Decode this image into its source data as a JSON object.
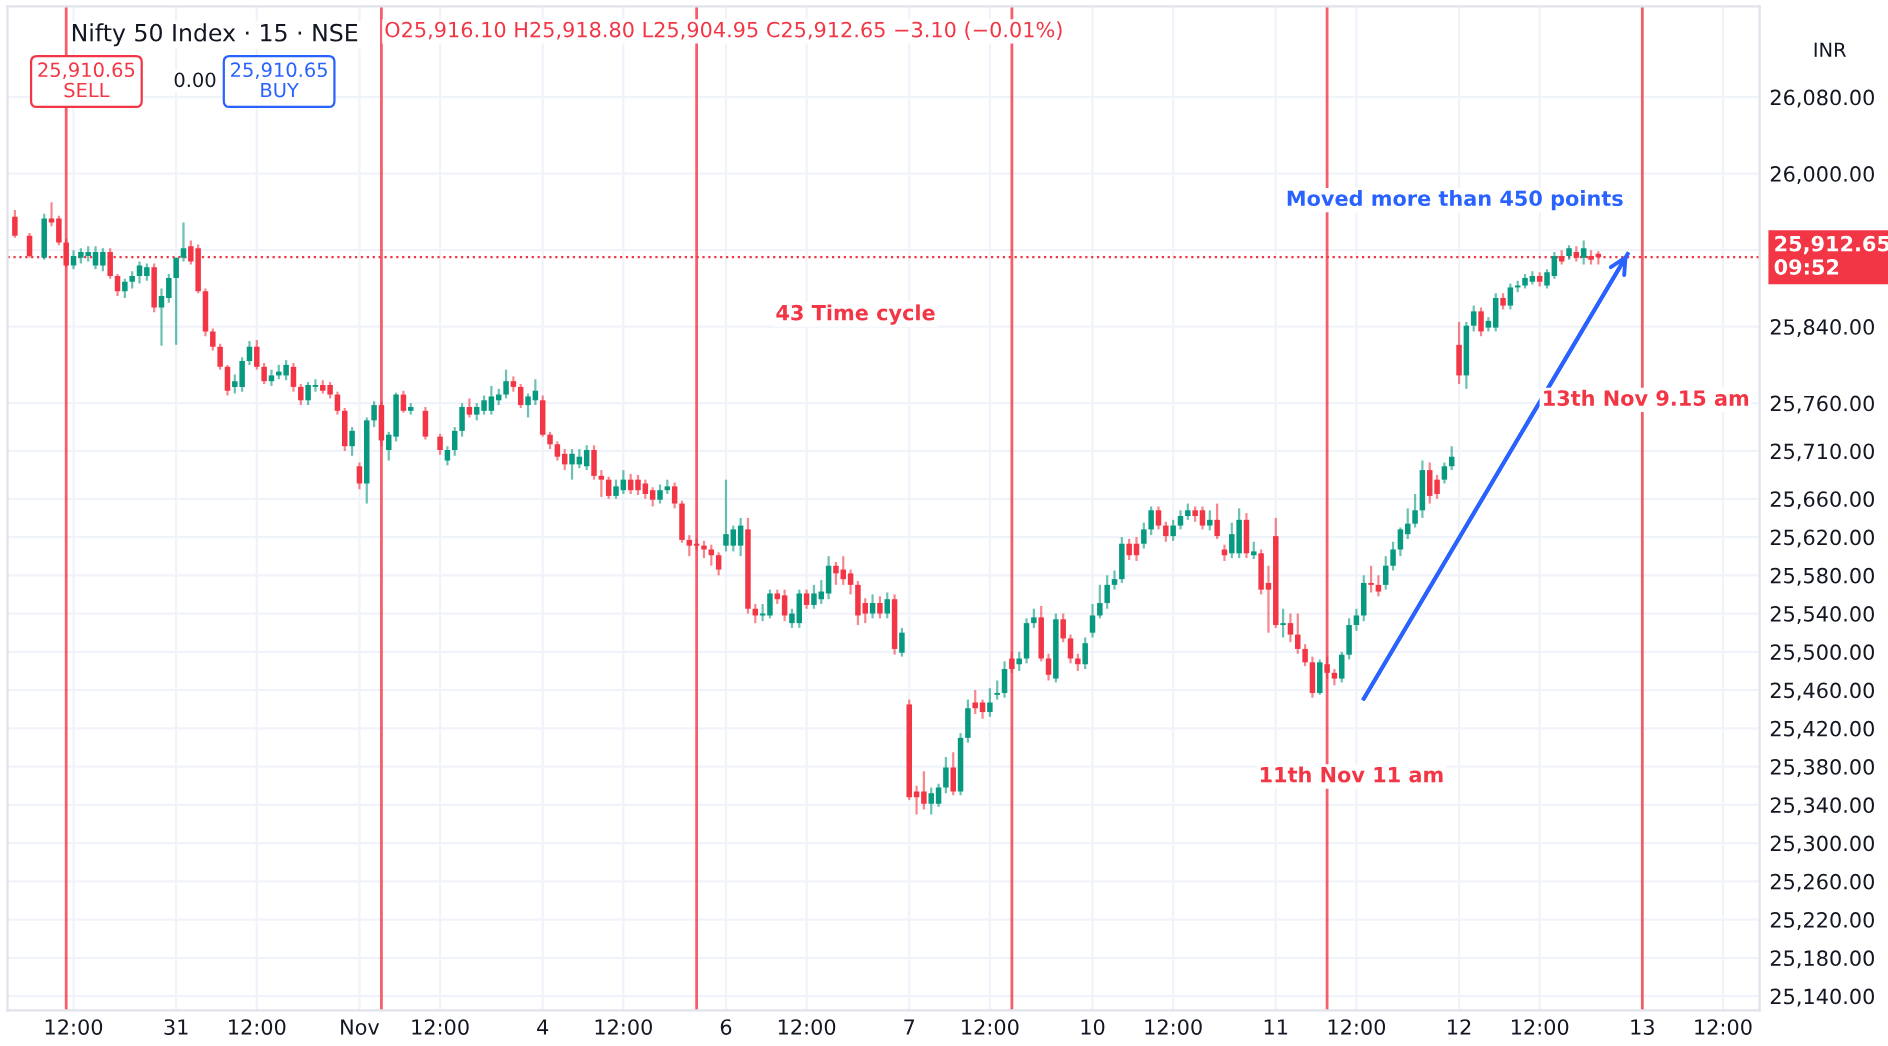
{
  "chart_data": {
    "type": "candlestick",
    "title": "Nifty 50 Index · 15 · NSE",
    "subtitle": "O25,916.10 H25,918.80 L25,904.95 C25,912.65 −3.10 (−0.01%)",
    "categories": [
      null,
      null,
      null,
      null,
      null,
      null,
      null,
      null,
      "12:00",
      null,
      null,
      null,
      null,
      null,
      null,
      null,
      null,
      null,
      null,
      null,
      null,
      null,
      "31",
      null,
      null,
      null,
      null,
      null,
      null,
      null,
      null,
      null,
      null,
      "12:00",
      null,
      null,
      null,
      null,
      null,
      null,
      null,
      null,
      null,
      null,
      null,
      null,
      null,
      "Nov",
      null,
      null,
      null,
      null,
      null,
      null,
      null,
      null,
      null,
      null,
      "12:00",
      null,
      null,
      null,
      null,
      null,
      null,
      null,
      null,
      null,
      null,
      null,
      null,
      null,
      "4",
      null,
      null,
      null,
      null,
      null,
      null,
      null,
      null,
      null,
      null,
      "12:00",
      null,
      null,
      null,
      null,
      null,
      null,
      null,
      null,
      null,
      null,
      null,
      null,
      null,
      "6",
      null,
      null,
      null,
      null,
      null,
      null,
      null,
      null,
      null,
      null,
      "12:00",
      null,
      null,
      null,
      null,
      null,
      null,
      null,
      null,
      null,
      null,
      null,
      null,
      null,
      "7",
      null,
      null,
      null,
      null,
      null,
      null,
      null,
      null,
      null,
      null,
      "12:00",
      null,
      null,
      null,
      null,
      null,
      null,
      null,
      null,
      null,
      null,
      null,
      null,
      null,
      "10",
      null,
      null,
      null,
      null,
      null,
      null,
      null,
      null,
      null,
      null,
      "12:00",
      null,
      null,
      null,
      null,
      null,
      null,
      null,
      null,
      null,
      null,
      null,
      null,
      null,
      "11",
      null,
      null,
      null,
      null,
      null,
      null,
      null,
      null,
      null,
      null,
      "12:00",
      null,
      null,
      null,
      null,
      null,
      null,
      null,
      null,
      null,
      null,
      null,
      null,
      null,
      "12",
      null,
      null,
      null,
      null,
      null,
      null,
      null,
      null,
      null,
      null,
      "12:00",
      null,
      null,
      null,
      null,
      null,
      null,
      null,
      null,
      null,
      null,
      null,
      null,
      null,
      "13",
      null,
      null,
      null,
      null,
      null,
      null,
      null,
      null,
      null,
      null,
      "12:00"
    ],
    "ohlc": [
      [
        25955,
        25962,
        25933,
        25935
      ],
      null,
      [
        25935,
        25938,
        25912,
        25914
      ],
      null,
      [
        25912,
        25958,
        25910,
        25953
      ],
      [
        25953,
        25970,
        25945,
        25949
      ],
      [
        25953,
        25956,
        25925,
        25928
      ],
      [
        25928,
        25932,
        25902,
        25904
      ],
      [
        25904,
        25920,
        25900,
        25914
      ],
      [
        25912,
        25922,
        25906,
        25918
      ],
      [
        25914,
        25924,
        25908,
        25918
      ],
      [
        25904,
        25924,
        25900,
        25918
      ],
      [
        25904,
        25922,
        25898,
        25918
      ],
      [
        25918,
        25922,
        25890,
        25893
      ],
      [
        25893,
        25895,
        25872,
        25877
      ],
      [
        25877,
        25890,
        25870,
        25887
      ],
      [
        25887,
        25898,
        25880,
        25893
      ],
      [
        25893,
        25908,
        25885,
        25904
      ],
      [
        25893,
        25906,
        25888,
        25902
      ],
      [
        25902,
        25906,
        25855,
        25860
      ],
      [
        25860,
        25880,
        25820,
        25872
      ],
      [
        25870,
        25895,
        25865,
        25891
      ],
      [
        25891,
        25912,
        25821,
        25912
      ],
      [
        25912,
        25949,
        25908,
        25922
      ],
      [
        25924,
        25930,
        25905,
        25908
      ],
      [
        25922,
        25926,
        25875,
        25877
      ],
      [
        25877,
        25880,
        25830,
        25835
      ],
      [
        25835,
        25838,
        25815,
        25819
      ],
      [
        25819,
        25822,
        25795,
        25798
      ],
      [
        25798,
        25800,
        25768,
        25773
      ],
      [
        25777,
        25790,
        25770,
        25783
      ],
      [
        25777,
        25808,
        25772,
        25804
      ],
      [
        25804,
        25825,
        25800,
        25819
      ],
      [
        25819,
        25826,
        25795,
        25798
      ],
      [
        25798,
        25802,
        25780,
        25783
      ],
      [
        25783,
        25795,
        25778,
        25789
      ],
      [
        25789,
        25800,
        25785,
        25793
      ],
      [
        25789,
        25805,
        25784,
        25800
      ],
      [
        25798,
        25802,
        25772,
        25777
      ],
      [
        25777,
        25780,
        25758,
        25763
      ],
      [
        25763,
        25782,
        25758,
        25779
      ],
      [
        25777,
        25785,
        25772,
        25779
      ],
      [
        25779,
        25784,
        25770,
        25773
      ],
      [
        25779,
        25782,
        25765,
        25769
      ],
      [
        25769,
        25772,
        25748,
        25752
      ],
      [
        25752,
        25755,
        25710,
        25715
      ],
      [
        25715,
        25735,
        25705,
        25731
      ],
      [
        25694,
        25698,
        25670,
        25676
      ],
      [
        25676,
        25745,
        25655,
        25742
      ],
      [
        25742,
        25762,
        25735,
        25758
      ],
      [
        25758,
        25762,
        25715,
        25721
      ],
      [
        25711,
        25730,
        25700,
        25727
      ],
      [
        25725,
        25771,
        25720,
        25769
      ],
      [
        25769,
        25773,
        25750,
        25752
      ],
      [
        25752,
        25760,
        25748,
        25756
      ],
      null,
      [
        25752,
        25756,
        25722,
        25725
      ],
      null,
      [
        25725,
        25728,
        25706,
        25711
      ],
      [
        25700,
        25715,
        25695,
        25711
      ],
      [
        25711,
        25735,
        25705,
        25731
      ],
      [
        25731,
        25760,
        25725,
        25756
      ],
      [
        25756,
        25765,
        25745,
        25748
      ],
      [
        25748,
        25760,
        25742,
        25756
      ],
      [
        25752,
        25768,
        25748,
        25763
      ],
      [
        25752,
        25778,
        25748,
        25767
      ],
      [
        25763,
        25775,
        25758,
        25769
      ],
      [
        25769,
        25795,
        25765,
        25783
      ],
      [
        25783,
        25788,
        25772,
        25777
      ],
      [
        25777,
        25780,
        25755,
        25758
      ],
      [
        25758,
        25770,
        25745,
        25767
      ],
      [
        25763,
        25785,
        25758,
        25773
      ],
      [
        25763,
        25768,
        25725,
        25727
      ],
      [
        25727,
        25730,
        25712,
        25717
      ],
      [
        25717,
        25720,
        25700,
        25704
      ],
      [
        25707,
        25712,
        25690,
        25696
      ],
      [
        25696,
        25712,
        25680,
        25707
      ],
      [
        25696,
        25712,
        25692,
        25704
      ],
      [
        25694,
        25716,
        25690,
        25711
      ],
      [
        25711,
        25716,
        25680,
        25684
      ],
      [
        25684,
        25690,
        25662,
        25680
      ],
      [
        25680,
        25683,
        25660,
        25663
      ],
      [
        25663,
        25680,
        25660,
        25673
      ],
      [
        25669,
        25690,
        25665,
        25680
      ],
      [
        25680,
        25686,
        25665,
        25669
      ],
      [
        25680,
        25685,
        25664,
        25669
      ],
      [
        25676,
        25680,
        25660,
        25665
      ],
      [
        25669,
        25672,
        25652,
        25659
      ],
      [
        25659,
        25675,
        25655,
        25669
      ],
      [
        25669,
        25680,
        25665,
        25673
      ],
      [
        25673,
        25677,
        25650,
        25655
      ],
      [
        25655,
        25658,
        25614,
        25617
      ],
      [
        25617,
        25622,
        25600,
        25611
      ],
      [
        25613,
        25618,
        25606,
        25611
      ],
      [
        25611,
        25616,
        25598,
        25607
      ],
      [
        25607,
        25612,
        25590,
        25601
      ],
      [
        25601,
        25604,
        25580,
        25586
      ],
      [
        25611,
        25680,
        25605,
        25623
      ],
      [
        25611,
        25632,
        25605,
        25628
      ],
      [
        25611,
        25640,
        25600,
        25632
      ],
      [
        25628,
        25640,
        25540,
        25545
      ],
      [
        25545,
        25550,
        25530,
        25538
      ],
      [
        25538,
        25550,
        25532,
        25540
      ],
      [
        25538,
        25565,
        25535,
        25561
      ],
      [
        25561,
        25565,
        25550,
        25555
      ],
      [
        25559,
        25565,
        25532,
        25538
      ],
      [
        25530,
        25545,
        25525,
        25540
      ],
      [
        25530,
        25565,
        25525,
        25561
      ],
      [
        25561,
        25565,
        25545,
        25549
      ],
      [
        25549,
        25570,
        25545,
        25561
      ],
      [
        25555,
        25575,
        25550,
        25563
      ],
      [
        25561,
        25600,
        25555,
        25590
      ],
      [
        25590,
        25594,
        25570,
        25582
      ],
      [
        25586,
        25600,
        25570,
        25576
      ],
      [
        25582,
        25586,
        25560,
        25570
      ],
      [
        25570,
        25574,
        25528,
        25538
      ],
      [
        25551,
        25556,
        25530,
        25540
      ],
      [
        25540,
        25560,
        25535,
        25551
      ],
      [
        25551,
        25558,
        25535,
        25540
      ],
      [
        25540,
        25562,
        25535,
        25555
      ],
      [
        25555,
        25560,
        25497,
        25503
      ],
      [
        25499,
        25525,
        25495,
        25520
      ],
      [
        25445,
        25450,
        25345,
        25348
      ],
      [
        25354,
        25360,
        25330,
        25348
      ],
      [
        25354,
        25375,
        25335,
        25341
      ],
      [
        25341,
        25358,
        25330,
        25352
      ],
      [
        25341,
        25362,
        25338,
        25358
      ],
      [
        25358,
        25390,
        25352,
        25379
      ],
      [
        25379,
        25395,
        25350,
        25354
      ],
      [
        25354,
        25415,
        25350,
        25410
      ],
      [
        25410,
        25450,
        25405,
        25441
      ],
      [
        25447,
        25460,
        25435,
        25441
      ],
      [
        25447,
        25450,
        25430,
        25437
      ],
      [
        25437,
        25462,
        25432,
        25447
      ],
      [
        25455,
        25470,
        25450,
        25457
      ],
      [
        25457,
        25490,
        25452,
        25482
      ],
      [
        25493,
        25500,
        25478,
        25482
      ],
      [
        25487,
        25500,
        25480,
        25493
      ],
      [
        25493,
        25535,
        25488,
        25530
      ],
      [
        25530,
        25545,
        25525,
        25536
      ],
      [
        25536,
        25548,
        25490,
        25493
      ],
      [
        25493,
        25498,
        25470,
        25476
      ],
      [
        25472,
        25540,
        25468,
        25534
      ],
      [
        25534,
        25540,
        25510,
        25514
      ],
      [
        25514,
        25518,
        25488,
        25493
      ],
      [
        25493,
        25498,
        25480,
        25487
      ],
      [
        25487,
        25515,
        25482,
        25509
      ],
      [
        25520,
        25550,
        25515,
        25538
      ],
      [
        25538,
        25570,
        25535,
        25551
      ],
      [
        25551,
        25580,
        25545,
        25570
      ],
      [
        25570,
        25585,
        25565,
        25576
      ],
      [
        25576,
        25620,
        25572,
        25613
      ],
      [
        25613,
        25618,
        25596,
        25601
      ],
      [
        25613,
        25620,
        25595,
        25601
      ],
      [
        25613,
        25635,
        25608,
        25628
      ],
      [
        25628,
        25652,
        25622,
        25648
      ],
      [
        25648,
        25652,
        25628,
        25632
      ],
      [
        25632,
        25636,
        25615,
        25621
      ],
      [
        25621,
        25638,
        25616,
        25632
      ],
      [
        25632,
        25648,
        25628,
        25642
      ],
      [
        25642,
        25655,
        25638,
        25648
      ],
      [
        25648,
        25652,
        25636,
        25642
      ],
      [
        25648,
        25652,
        25628,
        25632
      ],
      [
        25632,
        25648,
        25627,
        25638
      ],
      [
        25638,
        25655,
        25618,
        25621
      ],
      [
        25607,
        25612,
        25595,
        25601
      ],
      [
        25603,
        25635,
        25598,
        25623
      ],
      [
        25603,
        25650,
        25598,
        25638
      ],
      [
        25638,
        25645,
        25598,
        25603
      ],
      [
        25601,
        25615,
        25597,
        25605
      ],
      [
        25603,
        25607,
        25560,
        25565
      ],
      [
        25572,
        25590,
        25520,
        25565
      ],
      [
        25621,
        25640,
        25525,
        25528
      ],
      [
        25528,
        25545,
        25515,
        25530
      ],
      [
        25530,
        25540,
        25510,
        25518
      ],
      [
        25518,
        25540,
        25498,
        25503
      ],
      [
        25503,
        25508,
        25485,
        25489
      ],
      [
        25489,
        25495,
        25452,
        25457
      ],
      [
        25457,
        25492,
        25455,
        25489
      ],
      [
        25487,
        25495,
        25472,
        25478
      ],
      [
        25478,
        25482,
        25465,
        25472
      ],
      [
        25472,
        25500,
        25468,
        25497
      ],
      [
        25497,
        25535,
        25492,
        25528
      ],
      [
        25528,
        25545,
        25522,
        25538
      ],
      [
        25538,
        25580,
        25532,
        25572
      ],
      [
        25572,
        25590,
        25562,
        25570
      ],
      [
        25570,
        25580,
        25558,
        25563
      ],
      [
        25570,
        25600,
        25565,
        25590
      ],
      [
        25590,
        25615,
        25585,
        25607
      ],
      [
        25607,
        25630,
        25600,
        25628
      ],
      [
        25623,
        25650,
        25618,
        25634
      ],
      [
        25634,
        25665,
        25630,
        25648
      ],
      [
        25648,
        25700,
        25640,
        25690
      ],
      [
        25690,
        25698,
        25655,
        25663
      ],
      [
        25680,
        25685,
        25660,
        25665
      ],
      [
        25680,
        25698,
        25676,
        25694
      ],
      [
        25694,
        25715,
        25690,
        25704
      ],
      [
        25821,
        25845,
        25780,
        25789
      ],
      [
        25789,
        25845,
        25775,
        25841
      ],
      [
        25841,
        25862,
        25835,
        25856
      ],
      [
        25856,
        25860,
        25830,
        25835
      ],
      [
        25839,
        25850,
        25835,
        25846
      ],
      [
        25839,
        25875,
        25835,
        25870
      ],
      [
        25870,
        25875,
        25858,
        25862
      ],
      [
        25862,
        25885,
        25858,
        25881
      ],
      [
        25881,
        25888,
        25876,
        25883
      ],
      [
        25883,
        25895,
        25880,
        25891
      ],
      [
        25887,
        25898,
        25884,
        25893
      ],
      [
        25893,
        25897,
        25882,
        25887
      ],
      [
        25883,
        25900,
        25880,
        25897
      ],
      [
        25893,
        25918,
        25890,
        25914
      ],
      [
        25914,
        25920,
        25905,
        25908
      ],
      [
        25914,
        25925,
        25910,
        25922
      ],
      [
        25918,
        25924,
        25908,
        25912
      ],
      [
        25912,
        25930,
        25905,
        25922
      ],
      [
        25914,
        25920,
        25905,
        25910
      ],
      [
        25916.1,
        25918.8,
        25904.95,
        25912.65
      ],
      null,
      null,
      null,
      null,
      null,
      null,
      null,
      null,
      null,
      null,
      null,
      null,
      null,
      null,
      null,
      null,
      null
    ],
    "series": [
      {
        "type": "line",
        "color": "#2962ff",
        "values": [
          null,
          null,
          null,
          null,
          null,
          null,
          null,
          null,
          null,
          null,
          null,
          null,
          null,
          null,
          null,
          null,
          null,
          null,
          null,
          null,
          null,
          null,
          null,
          null,
          null,
          null,
          null,
          null,
          null,
          null,
          null,
          null,
          null,
          null,
          null,
          null,
          null,
          null,
          null,
          null,
          null,
          null,
          null,
          null,
          null,
          null,
          null,
          null,
          null,
          null,
          null,
          null,
          null,
          null,
          null,
          null,
          null,
          null,
          null,
          null,
          null,
          null,
          null,
          null,
          null,
          null,
          null,
          null,
          null,
          null,
          null,
          null,
          null,
          null,
          null,
          null,
          null,
          null,
          null,
          null,
          null,
          null,
          null,
          null,
          null,
          null,
          null,
          null,
          null,
          null,
          null,
          null,
          null,
          null,
          null,
          null,
          null,
          null,
          null,
          null,
          null,
          null,
          null,
          null,
          null,
          null,
          null,
          null,
          null,
          null,
          null,
          null,
          null,
          null,
          null,
          null,
          null,
          null,
          null,
          null,
          null,
          null,
          null,
          null,
          null,
          null,
          null,
          null,
          null,
          null,
          null,
          null,
          null,
          null,
          null,
          null,
          null,
          null,
          null,
          null,
          null,
          null,
          null,
          null,
          null,
          null,
          null,
          null,
          null,
          null,
          null,
          null,
          null,
          null,
          null,
          null,
          null,
          null,
          null,
          null,
          null,
          null,
          null,
          null,
          null,
          null,
          null,
          null,
          null,
          null,
          null,
          null,
          null,
          null,
          null,
          null,
          null,
          null,
          null,
          null,
          null,
          null,
          null,
          null,
          25451,
          null,
          null,
          null,
          null,
          null,
          null,
          null,
          null,
          null,
          null,
          null,
          null,
          null,
          null,
          null,
          null,
          null,
          null,
          null,
          null,
          null,
          null,
          null,
          null,
          null,
          null,
          null,
          null,
          null,
          null,
          null,
          null,
          null,
          null,
          null,
          25916,
          null,
          null,
          null,
          null,
          null,
          null,
          null,
          null,
          null,
          null,
          null,
          null,
          null
        ]
      }
    ],
    "ylim": [
      25125,
      26175
    ],
    "yticks": [
      {
        "value": 25140,
        "label": "25,140.00"
      },
      {
        "value": 25180,
        "label": "25,180.00"
      },
      {
        "value": 25220,
        "label": "25,220.00"
      },
      {
        "value": 25260,
        "label": "25,260.00"
      },
      {
        "value": 25300,
        "label": "25,300.00"
      },
      {
        "value": 25340,
        "label": "25,340.00"
      },
      {
        "value": 25380,
        "label": "25,380.00"
      },
      {
        "value": 25420,
        "label": "25,420.00"
      },
      {
        "value": 25460,
        "label": "25,460.00"
      },
      {
        "value": 25500,
        "label": "25,500.00"
      },
      {
        "value": 25540,
        "label": "25,540.00"
      },
      {
        "value": 25580,
        "label": "25,580.00"
      },
      {
        "value": 25620,
        "label": "25,620.00"
      },
      {
        "value": 25660,
        "label": "25,660.00"
      },
      {
        "value": 25710,
        "label": "25,710.00"
      },
      {
        "value": 25760,
        "label": "25,760.00"
      },
      {
        "value": 25840,
        "label": "25,840.00"
      },
      {
        "value": 25920,
        "label": null
      },
      {
        "value": 26000,
        "label": "26,000.00"
      },
      {
        "value": 26080,
        "label": "26,080.00"
      }
    ],
    "grid": true,
    "ref_lines": [
      {
        "axis": "y",
        "value": 25912.65,
        "label": "25,912.65\n09:52",
        "color": "#f23645",
        "line_style": "dotted"
      }
    ],
    "annotations": [
      "25,910.65\nSELL",
      "0.00",
      "25,910.65\nBUY",
      "INR",
      "43 Time cycle",
      "Moved more than 450 points",
      "13th Nov 9.15 am",
      "11th Nov 11 am"
    ]
  }
}
